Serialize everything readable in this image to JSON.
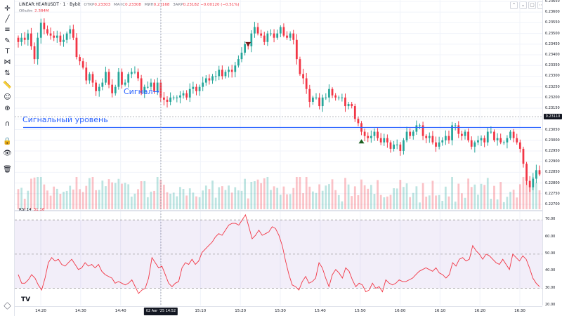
{
  "legend": {
    "symbol": "LINEAR:HBARUSDT · 1 · Bybit",
    "open_label": "ОТКР",
    "open": "0.23303",
    "high_label": "МАКС",
    "high": "0.23308",
    "low_label": "МИН",
    "low": "0.23168",
    "close_label": "ЗАКР",
    "close": "0.23182",
    "change": "−0.00120 (−0.51%)",
    "volume_label": "Объём",
    "volume": "2.384M",
    "rsi_label": "RSI 14",
    "rsi": "31.16"
  },
  "annotations": {
    "signal": "Сигнал",
    "signal_level": "Сигнальный уровень"
  },
  "price_badge": "0.23110",
  "time_badge": "02 Авг '25    14:52",
  "logo": "TV",
  "colors": {
    "up": "#26a69a",
    "down": "#f23645",
    "annotation": "#2962ff",
    "rsi": "#f23645",
    "rsi_band": "#7e57c2"
  },
  "toolbar_icons": [
    "crosshair-icon",
    "trend-line-icon",
    "fib-icon",
    "brush-icon",
    "text-icon",
    "pattern-icon",
    "prediction-icon",
    "ruler-icon",
    "emoji-icon",
    "zoom-icon",
    "magnet-icon",
    "lock-icon",
    "eye-icon",
    "trash-icon"
  ],
  "chart_data": [
    {
      "type": "candlestick",
      "title": "LINEAR:HBARUSDT · 1 · Bybit",
      "ylim": [
        0.227,
        0.2365
      ],
      "y_ticks": [
        "0.23650",
        "0.23600",
        "0.23550",
        "0.23500",
        "0.23450",
        "0.23400",
        "0.23350",
        "0.23300",
        "0.23250",
        "0.23200",
        "0.23150",
        "0.23100",
        "0.23050",
        "0.23000",
        "0.22950",
        "0.22900",
        "0.22850",
        "0.22800",
        "0.22750",
        "0.22700"
      ],
      "x_ticks": [
        "14:20",
        "14:30",
        "14:40",
        "15:00",
        "15:10",
        "15:20",
        "15:30",
        "15:40",
        "15:50",
        "16:00",
        "16:10",
        "16:20",
        "16:30"
      ],
      "close": [
        0.2346,
        0.2348,
        0.2347,
        0.235,
        0.2344,
        0.2338,
        0.2348,
        0.2355,
        0.2352,
        0.235,
        0.2349,
        0.2348,
        0.2349,
        0.2346,
        0.2347,
        0.235,
        0.2352,
        0.2348,
        0.2339,
        0.2337,
        0.2334,
        0.2328,
        0.2331,
        0.2327,
        0.2323,
        0.2325,
        0.2327,
        0.2332,
        0.2326,
        0.2322,
        0.2325,
        0.2332,
        0.2326,
        0.2327,
        0.2331,
        0.2332,
        0.2332,
        0.2329,
        0.2322,
        0.2325,
        0.2325,
        0.2327,
        0.2323,
        0.2327,
        0.232,
        0.2319,
        0.2318,
        0.232,
        0.232,
        0.232,
        0.2321,
        0.2322,
        0.232,
        0.2324,
        0.2325,
        0.2323,
        0.2325,
        0.2327,
        0.2329,
        0.2328,
        0.233,
        0.233,
        0.2333,
        0.233,
        0.2332,
        0.2333,
        0.2332,
        0.2335,
        0.2338,
        0.2341,
        0.2345,
        0.2344,
        0.235,
        0.2353,
        0.235,
        0.2349,
        0.2346,
        0.235,
        0.235,
        0.2348,
        0.235,
        0.2353,
        0.2349,
        0.2348,
        0.235,
        0.2347,
        0.2338,
        0.2331,
        0.2329,
        0.2324,
        0.2318,
        0.232,
        0.232,
        0.2316,
        0.232,
        0.232,
        0.2324,
        0.2321,
        0.232,
        0.232,
        0.232,
        0.2316,
        0.2317,
        0.2316,
        0.231,
        0.2308,
        0.2304,
        0.2302,
        0.2301,
        0.2302,
        0.2304,
        0.2301,
        0.2299,
        0.2301,
        0.2299,
        0.2296,
        0.2298,
        0.2298,
        0.2295,
        0.23,
        0.2304,
        0.2302,
        0.2304,
        0.2307,
        0.2307,
        0.2302,
        0.2301,
        0.2302,
        0.2299,
        0.2297,
        0.2299,
        0.23,
        0.2302,
        0.23,
        0.2307,
        0.2307,
        0.2303,
        0.2302,
        0.2304,
        0.23,
        0.2297,
        0.2299,
        0.23,
        0.2301,
        0.2299,
        0.2304,
        0.2304,
        0.23,
        0.2301,
        0.2299,
        0.2299,
        0.2301,
        0.2304,
        0.2301,
        0.2299,
        0.2296,
        0.2289,
        0.2281,
        0.2278,
        0.2282,
        0.2286,
        0.2284
      ],
      "signal_level": 0.2306,
      "current_price": 0.2311,
      "markers": [
        {
          "kind": "sell",
          "label": ""
        },
        {
          "kind": "buy",
          "label": ""
        }
      ]
    },
    {
      "type": "line",
      "title": "RSI 14",
      "ylim": [
        20,
        75
      ],
      "y_ticks": [
        "70.00",
        "60.00",
        "50.00",
        "40.00",
        "30.00",
        "20.00"
      ],
      "bands": [
        70,
        50,
        30
      ],
      "series": [
        {
          "name": "RSI 14",
          "values": [
            38,
            33,
            33,
            35,
            38,
            36,
            32,
            29,
            36,
            45,
            48,
            46,
            47,
            44,
            43,
            45,
            47,
            44,
            41,
            42,
            45,
            43,
            44,
            42,
            44,
            40,
            38,
            37,
            36,
            33,
            34,
            33,
            32,
            33,
            35,
            31,
            27,
            29,
            30,
            36,
            48,
            45,
            42,
            43,
            38,
            33,
            31,
            33,
            34,
            42,
            45,
            44,
            47,
            44,
            46,
            51,
            53,
            55,
            57,
            60,
            62,
            61,
            64,
            67,
            68,
            68,
            67,
            70,
            73,
            66,
            59,
            61,
            64,
            61,
            62,
            63,
            66,
            65,
            61,
            55,
            46,
            38,
            32,
            31,
            29,
            34,
            37,
            33,
            34,
            36,
            45,
            42,
            36,
            31,
            38,
            41,
            39,
            36,
            42,
            40,
            35,
            31,
            33,
            32,
            28,
            29,
            33,
            30,
            31,
            28,
            35,
            33,
            32,
            33,
            35,
            34,
            34,
            35,
            36,
            38,
            40,
            41,
            42,
            41,
            40,
            42,
            39,
            38,
            36,
            38,
            45,
            43,
            47,
            48,
            46,
            47,
            55,
            52,
            50,
            47,
            50,
            49,
            47,
            45,
            44,
            47,
            44,
            41,
            50,
            48,
            46,
            49,
            47,
            42,
            36,
            33,
            31
          ]
        }
      ]
    }
  ]
}
